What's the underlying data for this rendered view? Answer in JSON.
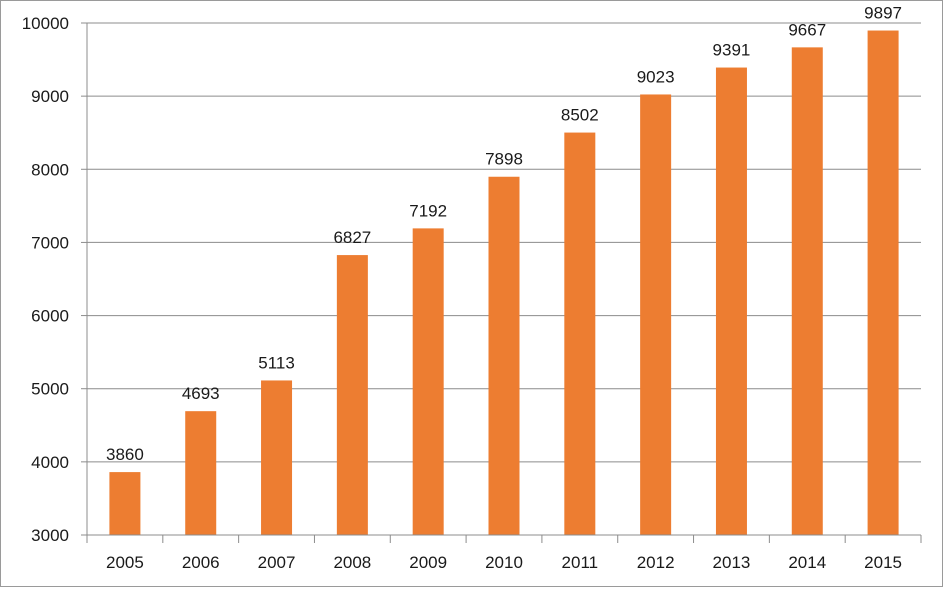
{
  "chart_data": {
    "type": "bar",
    "categories": [
      "2005",
      "2006",
      "2007",
      "2008",
      "2009",
      "2010",
      "2011",
      "2012",
      "2013",
      "2014",
      "2015"
    ],
    "values": [
      3860,
      4693,
      5113,
      6827,
      7192,
      7898,
      8502,
      9023,
      9391,
      9667,
      9897
    ],
    "ylim": [
      3000,
      10000
    ],
    "yticks": [
      3000,
      4000,
      5000,
      6000,
      7000,
      8000,
      9000,
      10000
    ],
    "grid": true,
    "data_labels": true,
    "bar_color": "#ED7D31"
  }
}
